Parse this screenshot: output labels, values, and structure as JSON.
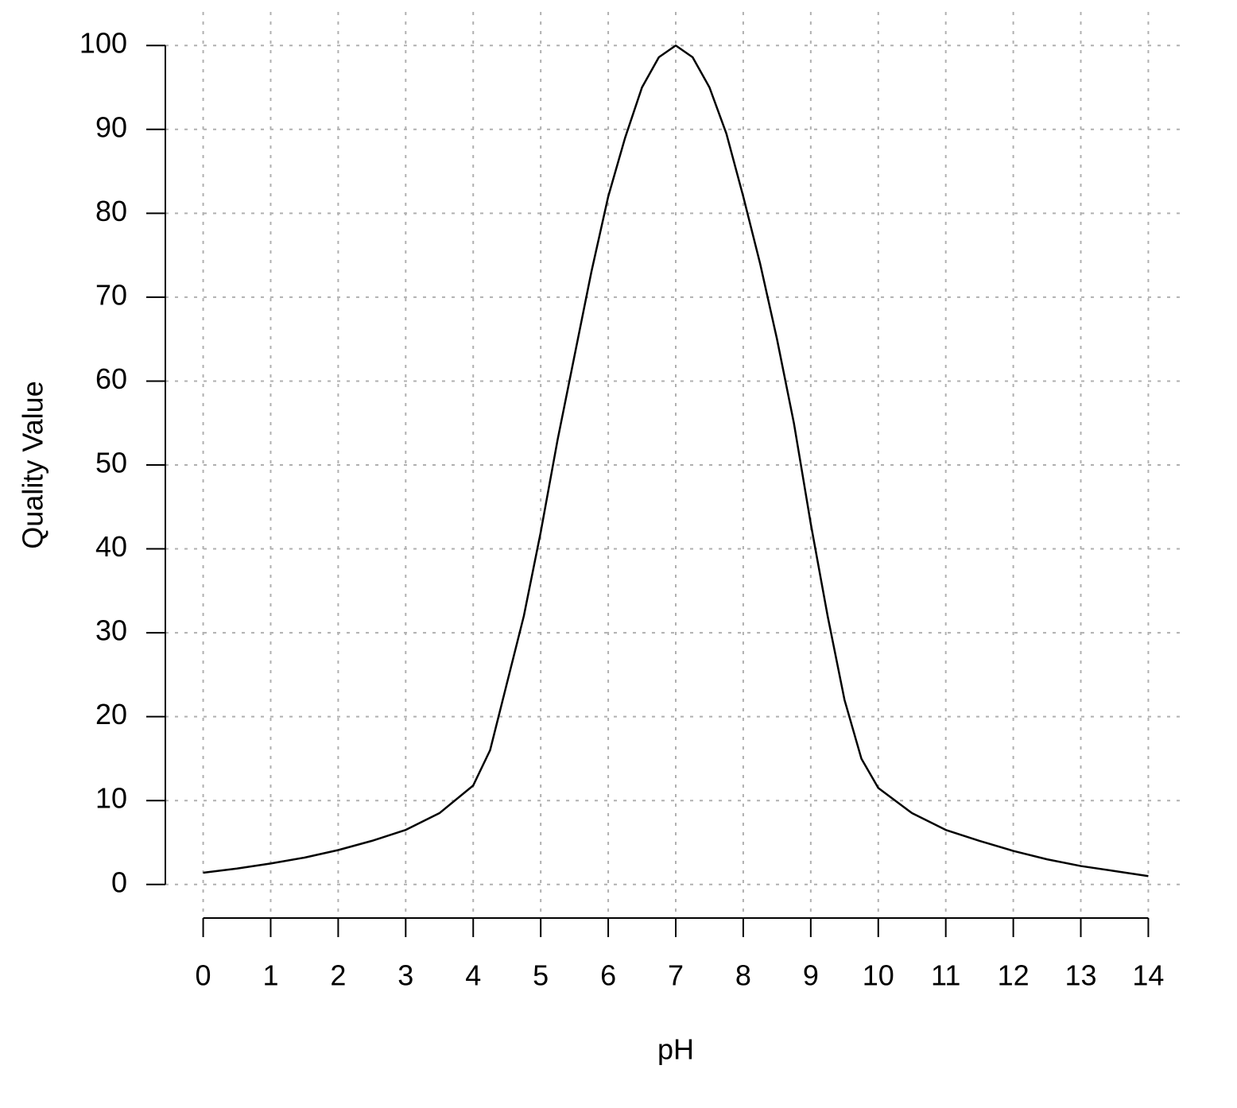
{
  "chart_data": {
    "type": "line",
    "x_label": "pH",
    "y_label": "Quality Value",
    "series": [
      {
        "color": "#000000",
        "x": [
          0,
          0.5,
          1,
          1.5,
          2,
          2.5,
          3,
          3.5,
          4,
          4.25,
          4.5,
          4.75,
          5,
          5.25,
          5.5,
          5.75,
          6,
          6.25,
          6.5,
          6.75,
          7,
          7.25,
          7.5,
          7.75,
          8,
          8.25,
          8.5,
          8.75,
          9,
          9.25,
          9.5,
          9.75,
          10,
          10.5,
          11,
          11.5,
          12,
          12.5,
          13,
          13.5,
          14
        ],
        "values": [
          1.4,
          1.9,
          2.5,
          3.2,
          4.1,
          5.2,
          6.5,
          8.5,
          11.8,
          16,
          24,
          32,
          42,
          53,
          63,
          73,
          82,
          89,
          95,
          98.6,
          100,
          98.6,
          95,
          89.5,
          82,
          74,
          65,
          55,
          43,
          32,
          22,
          15,
          11.5,
          8.5,
          6.5,
          5.2,
          4,
          3,
          2.2,
          1.6,
          1.0
        ]
      }
    ],
    "xlim": [
      -0.56,
      14.56
    ],
    "ylim": [
      -4,
      104
    ],
    "xticks": [
      0,
      1,
      2,
      3,
      4,
      5,
      6,
      7,
      8,
      9,
      10,
      11,
      12,
      13,
      14
    ],
    "yticks": [
      0,
      10,
      20,
      30,
      40,
      50,
      60,
      70,
      80,
      90,
      100
    ],
    "grid": true
  }
}
